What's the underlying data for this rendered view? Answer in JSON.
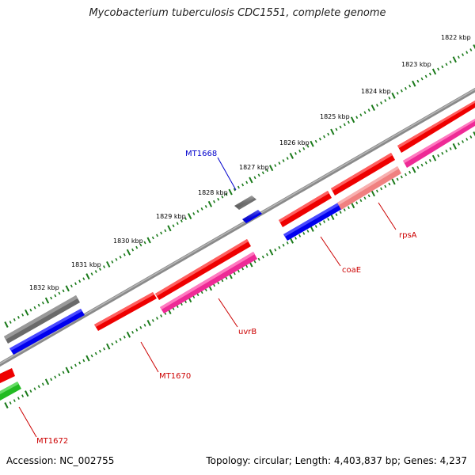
{
  "title": "Mycobacterium tuberculosis CDC1551, complete genome",
  "footer": {
    "accession": "Accession: NC_002755",
    "summary": "Topology: circular; Length: 4,403,837 bp; Genes: 4,237"
  },
  "ticks": {
    "labels": [
      "1822 kbp",
      "1823 kbp",
      "1824 kbp",
      "1825 kbp",
      "1826 kbp",
      "1827 kbp",
      "1828 kbp",
      "1829 kbp",
      "1830 kbp",
      "1831 kbp",
      "1832 kbp"
    ]
  },
  "colors": {
    "backbone": "#808080",
    "tick": "#1a7a1a",
    "gray_feature": "#707070",
    "blue_feature": "#0000ee",
    "red_feature": "#ee0000",
    "pink_feature": "#ee3399",
    "salmon_feature": "#f08080",
    "green_feature": "#33cc33",
    "label_red": "#cc0000",
    "label_blue": "#0000cc"
  },
  "gene_labels": [
    {
      "id": "mt1668",
      "text": "MT1668",
      "color": "label_blue"
    },
    {
      "id": "rpsa",
      "text": "rpsA",
      "color": "label_red"
    },
    {
      "id": "coae",
      "text": "coaE",
      "color": "label_red"
    },
    {
      "id": "uvrb",
      "text": "uvrB",
      "color": "label_red"
    },
    {
      "id": "mt1670",
      "text": "MT1670",
      "color": "label_red"
    },
    {
      "id": "mt1672",
      "text": "MT1672",
      "color": "label_red"
    }
  ]
}
